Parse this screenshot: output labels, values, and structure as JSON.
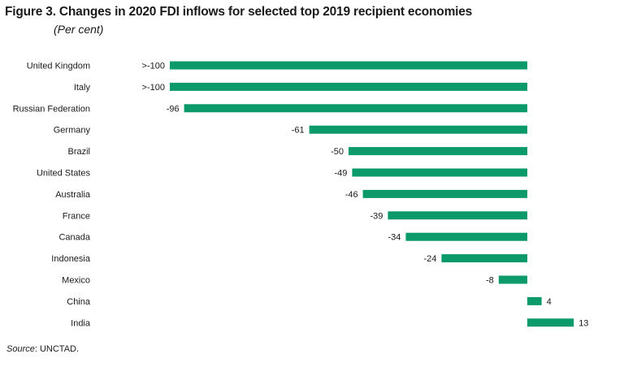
{
  "figure": {
    "title": "Figure 3. Changes in 2020 FDI inflows for selected top 2019 recipient economies",
    "subtitle": "(Per cent)",
    "source_label": "Source",
    "source_text": ": UNCTAD."
  },
  "colors": {
    "bar": "#0c9a6b"
  },
  "chart_data": {
    "type": "bar",
    "orientation": "horizontal",
    "title": "Figure 3. Changes in 2020 FDI inflows for selected top 2019 recipient economies",
    "subtitle": "(Per cent)",
    "xlabel": "",
    "ylabel": "",
    "grid": false,
    "categories": [
      "United Kingdom",
      "Italy",
      "Russian Federation",
      "Germany",
      "Brazil",
      "United States",
      "Australia",
      "France",
      "Canada",
      "Indonesia",
      "Mexico",
      "China",
      "India"
    ],
    "values": [
      -100,
      -100,
      -96,
      -61,
      -50,
      -49,
      -46,
      -39,
      -34,
      -24,
      -8,
      4,
      13
    ],
    "value_labels": [
      ">-100",
      ">-100",
      "-96",
      "-61",
      "-50",
      "-49",
      "-46",
      "-39",
      "-34",
      "-24",
      "-8",
      "4",
      "13"
    ],
    "xlim": [
      -100,
      13
    ]
  }
}
